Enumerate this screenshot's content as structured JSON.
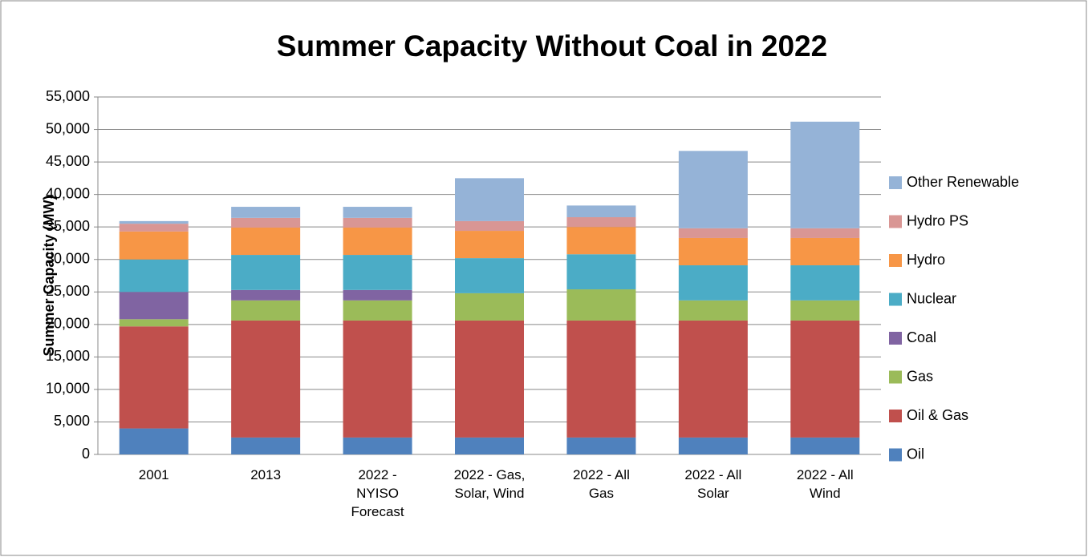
{
  "chart_data": {
    "type": "stacked-bar",
    "title": "Summer Capacity Without Coal in 2022",
    "y_label": "Summer Capacity (MW)",
    "categories": [
      "2001",
      "2013",
      "2022 - NYISO Forecast",
      "2022 - Gas, Solar, Wind",
      "2022 - All Gas",
      "2022 - All Solar",
      "2022 - All Wind"
    ],
    "series": [
      {
        "name": "Oil",
        "color": "#4f81bd",
        "values": [
          4000,
          2600,
          2600,
          2600,
          2600,
          2600,
          2600
        ]
      },
      {
        "name": "Oil & Gas",
        "color": "#c0504d",
        "values": [
          15700,
          18000,
          18000,
          18000,
          18000,
          18000,
          18000
        ]
      },
      {
        "name": "Gas",
        "color": "#9bbb59",
        "values": [
          1100,
          3100,
          3100,
          4200,
          4800,
          3100,
          3100
        ]
      },
      {
        "name": "Coal",
        "color": "#8064a2",
        "values": [
          4200,
          1600,
          1600,
          0,
          0,
          0,
          0
        ]
      },
      {
        "name": "Nuclear",
        "color": "#4bacc6",
        "values": [
          5000,
          5400,
          5400,
          5400,
          5400,
          5400,
          5400
        ]
      },
      {
        "name": "Hydro",
        "color": "#f79646",
        "values": [
          4300,
          4200,
          4200,
          4200,
          4200,
          4200,
          4200
        ]
      },
      {
        "name": "Hydro PS",
        "color": "#d99694",
        "values": [
          1200,
          1500,
          1500,
          1500,
          1500,
          1500,
          1500
        ]
      },
      {
        "name": "Other Renewable",
        "color": "#95b3d7",
        "values": [
          400,
          1700,
          1700,
          6600,
          1800,
          11900,
          16400
        ]
      }
    ],
    "ylim": [
      0,
      55000
    ],
    "yticks": [
      0,
      {
        "value": 5000,
        "label": "5,000"
      },
      {
        "value": 10000,
        "label": "10,000"
      },
      {
        "value": 15000,
        "label": "15,000"
      },
      {
        "value": 20000,
        "label": "20,000"
      },
      {
        "value": 25000,
        "label": "25,000"
      },
      {
        "value": 30000,
        "label": "30,000"
      },
      {
        "value": 35000,
        "label": "35,000"
      },
      {
        "value": 40000,
        "label": "40,000"
      },
      {
        "value": 45000,
        "label": "45,000"
      },
      {
        "value": 50000,
        "label": "50,000"
      },
      {
        "value": 55000,
        "label": "55,000"
      }
    ],
    "grid": true,
    "legend": "right"
  }
}
